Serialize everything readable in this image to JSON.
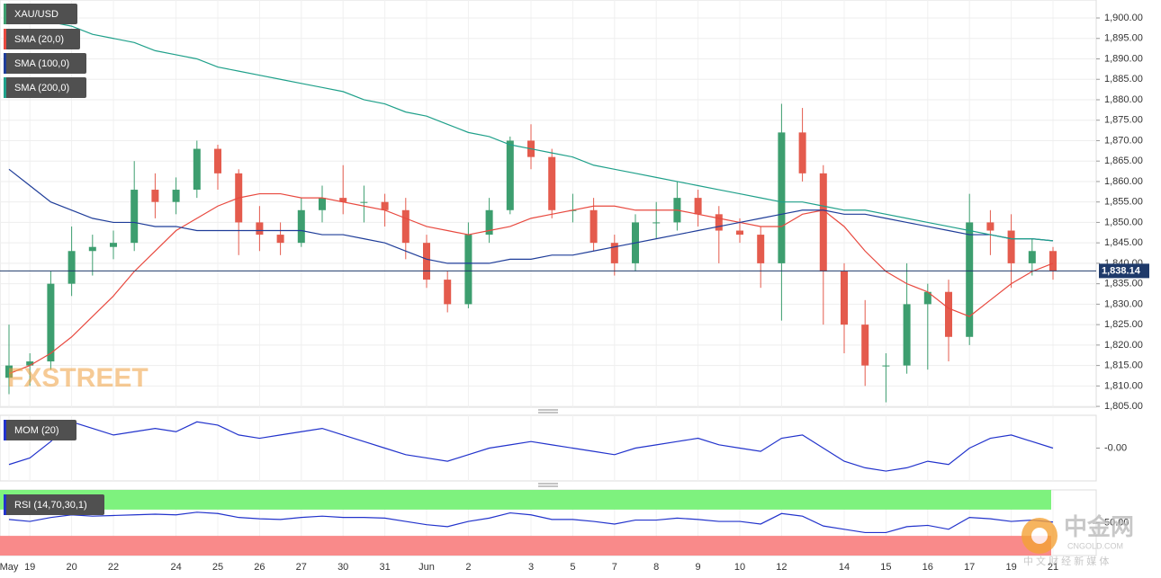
{
  "chart_data": [
    {
      "type": "candlestick",
      "name": "XAU/USD",
      "up_color": "#3d9e6f",
      "down_color": "#e45b4d",
      "categories": [
        "May",
        "19",
        null,
        "20",
        null,
        "22",
        null,
        null,
        "24",
        null,
        "25",
        null,
        "26",
        null,
        "27",
        null,
        "30",
        null,
        "31",
        null,
        "Jun",
        null,
        "2",
        null,
        null,
        "3",
        null,
        "5",
        null,
        "7",
        null,
        "8",
        null,
        "9",
        null,
        "10",
        null,
        "12",
        null,
        null,
        "14",
        null,
        "15",
        null,
        "16",
        null,
        "17",
        null,
        "19",
        null,
        "21"
      ],
      "open": [
        1812,
        1815,
        1816,
        1835,
        1843,
        1844,
        1845,
        1858,
        1855,
        1858,
        1868,
        1862,
        1850,
        1847,
        1845,
        1853,
        1856,
        1855,
        1855,
        1853,
        1845,
        1836,
        1830,
        1847,
        1853,
        1870,
        1866,
        1853,
        1853,
        1845,
        1840,
        1850,
        1850,
        1856,
        1852,
        1848,
        1847,
        1840,
        1872,
        1862,
        1838,
        1825,
        1815,
        1815,
        1830,
        1833,
        1822,
        1850,
        1848,
        1840,
        1843
      ],
      "high": [
        1825,
        1818,
        1838,
        1849,
        1847,
        1848,
        1865,
        1862,
        1861,
        1870,
        1869,
        1863,
        1854,
        1850,
        1856,
        1859,
        1864,
        1859,
        1857,
        1856,
        1847,
        1838,
        1850,
        1856,
        1871,
        1874,
        1868,
        1857,
        1856,
        1847,
        1852,
        1855,
        1860,
        1858,
        1854,
        1851,
        1849,
        1879,
        1878,
        1864,
        1840,
        1831,
        1818,
        1840,
        1835,
        1836,
        1857,
        1853,
        1852,
        1846,
        1844
      ],
      "low": [
        1808,
        1810,
        1814,
        1832,
        1837,
        1841,
        1843,
        1851,
        1852,
        1856,
        1858,
        1842,
        1843,
        1842,
        1844,
        1850,
        1852,
        1850,
        1849,
        1841,
        1834,
        1828,
        1829,
        1845,
        1852,
        1863,
        1851,
        1850,
        1843,
        1837,
        1838,
        1846,
        1848,
        1849,
        1840,
        1845,
        1834,
        1826,
        1860,
        1825,
        1818,
        1810,
        1806,
        1813,
        1814,
        1816,
        1820,
        1842,
        1834,
        1837,
        1836
      ],
      "close": [
        1815,
        1816,
        1835,
        1843,
        1844,
        1845,
        1858,
        1855,
        1858,
        1868,
        1862,
        1850,
        1847,
        1845,
        1853,
        1856,
        1855,
        1855,
        1853,
        1845,
        1836,
        1830,
        1847,
        1853,
        1870,
        1866,
        1853,
        1853,
        1845,
        1840,
        1850,
        1850,
        1856,
        1852,
        1848,
        1847,
        1840,
        1872,
        1862,
        1838,
        1825,
        1815,
        1815,
        1830,
        1833,
        1822,
        1850,
        1848,
        1840,
        1843,
        1838.14
      ],
      "last_price": {
        "value": 1838.14,
        "label": "1,838.14"
      },
      "series": [
        {
          "name": "SMA (20,0)",
          "color": "#e8493f",
          "values": [
            1813,
            1815,
            1818,
            1822,
            1827,
            1832,
            1838,
            1843,
            1848,
            1851,
            1854,
            1856,
            1857,
            1857,
            1856,
            1856,
            1855,
            1854,
            1853,
            1851,
            1849,
            1848,
            1847,
            1848,
            1849,
            1851,
            1852,
            1853,
            1854,
            1854,
            1853,
            1853,
            1853,
            1852,
            1851,
            1850,
            1849,
            1849,
            1852,
            1853,
            1849,
            1843,
            1838,
            1835,
            1833,
            1829,
            1827,
            1831,
            1835,
            1838,
            1840
          ]
        },
        {
          "name": "SMA (100,0)",
          "color": "#1f3d99",
          "values": [
            1863,
            1859,
            1855,
            1853,
            1851,
            1850,
            1850,
            1849,
            1849,
            1848,
            1848,
            1848,
            1848,
            1848,
            1848,
            1847,
            1847,
            1846,
            1845,
            1843,
            1841,
            1840,
            1840,
            1840,
            1841,
            1841,
            1842,
            1842,
            1843,
            1844,
            1845,
            1846,
            1847,
            1848,
            1849,
            1850,
            1851,
            1852,
            1853,
            1853,
            1852,
            1852,
            1851,
            1850,
            1849,
            1848,
            1847,
            1847,
            1846,
            1846,
            1845.5
          ]
        },
        {
          "name": "SMA (200,0)",
          "color": "#1fa08a",
          "values": [
            1902,
            1900,
            1899,
            1898,
            1896,
            1895,
            1894,
            1892,
            1891,
            1890,
            1888,
            1887,
            1886,
            1885,
            1884,
            1883,
            1882,
            1880,
            1879,
            1877,
            1876,
            1874,
            1872,
            1871,
            1869,
            1868,
            1867,
            1866,
            1864,
            1863,
            1862,
            1861,
            1860,
            1859,
            1858,
            1857,
            1856,
            1855,
            1855,
            1854,
            1853,
            1853,
            1852,
            1851,
            1850,
            1849,
            1848,
            1847,
            1846,
            1846,
            1845.5
          ]
        }
      ],
      "ylim": [
        1804.8,
        1904.4
      ],
      "yticks": [
        {
          "value": 1805,
          "label": "1,805.00"
        },
        {
          "value": 1810,
          "label": "1,810.00"
        },
        {
          "value": 1815,
          "label": "1,815.00"
        },
        {
          "value": 1820,
          "label": "1,820.00"
        },
        {
          "value": 1825,
          "label": "1,825.00"
        },
        {
          "value": 1830,
          "label": "1,830.00"
        },
        {
          "value": 1835,
          "label": "1,835.00"
        },
        {
          "value": 1840,
          "label": "1,840.00"
        },
        {
          "value": 1845,
          "label": "1,845.00"
        },
        {
          "value": 1850,
          "label": "1,850.00"
        },
        {
          "value": 1855,
          "label": "1,855.00"
        },
        {
          "value": 1860,
          "label": "1,860.00"
        },
        {
          "value": 1865,
          "label": "1,865.00"
        },
        {
          "value": 1870,
          "label": "1,870.00"
        },
        {
          "value": 1875,
          "label": "1,875.00"
        },
        {
          "value": 1880,
          "label": "1,880.00"
        },
        {
          "value": 1885,
          "label": "1,885.00"
        },
        {
          "value": 1890,
          "label": "1,890.00"
        },
        {
          "value": 1895,
          "label": "1,895.00"
        },
        {
          "value": 1900,
          "label": "1,900.00"
        }
      ],
      "grid": true
    },
    {
      "type": "line",
      "series": [
        {
          "name": "MOM (20)",
          "color": "#2233cc",
          "values": [
            -5,
            -3,
            2,
            8,
            6,
            4,
            5,
            6,
            5,
            8,
            7,
            4,
            3,
            4,
            5,
            6,
            4,
            2,
            0,
            -2,
            -3,
            -4,
            -2,
            0,
            1,
            2,
            1,
            0,
            -1,
            -2,
            0,
            1,
            2,
            3,
            1,
            0,
            -1,
            3,
            4,
            0,
            -4,
            -6,
            -7,
            -6,
            -4,
            -5,
            0,
            3,
            4,
            2,
            0
          ]
        }
      ],
      "ylim": [
        -10,
        10
      ],
      "yticks": [
        {
          "value": 0,
          "label": "-0.00"
        }
      ]
    },
    {
      "type": "line",
      "series": [
        {
          "name": "RSI (14,70,30,1)",
          "color": "#2233cc",
          "values": [
            55,
            52,
            58,
            62,
            60,
            61,
            62,
            63,
            62,
            66,
            64,
            58,
            56,
            55,
            58,
            60,
            58,
            58,
            57,
            52,
            47,
            44,
            52,
            57,
            65,
            62,
            55,
            55,
            52,
            48,
            54,
            54,
            57,
            55,
            52,
            52,
            48,
            64,
            60,
            45,
            40,
            35,
            35,
            44,
            46,
            40,
            58,
            56,
            52,
            54,
            51
          ]
        }
      ],
      "upper_band": {
        "value": 70,
        "color": "#7ef27e"
      },
      "lower_band": {
        "value": 30,
        "color": "#f98a8a"
      },
      "ylim": [
        0,
        100
      ],
      "yticks": [
        {
          "value": 50,
          "label": "50.00"
        }
      ]
    }
  ],
  "watermarks": {
    "brand": "FXSTREET",
    "site_name": "中金网",
    "site_url": "CNGOLD.COM",
    "site_tagline": "中 文 财 经 新 媒 体"
  }
}
